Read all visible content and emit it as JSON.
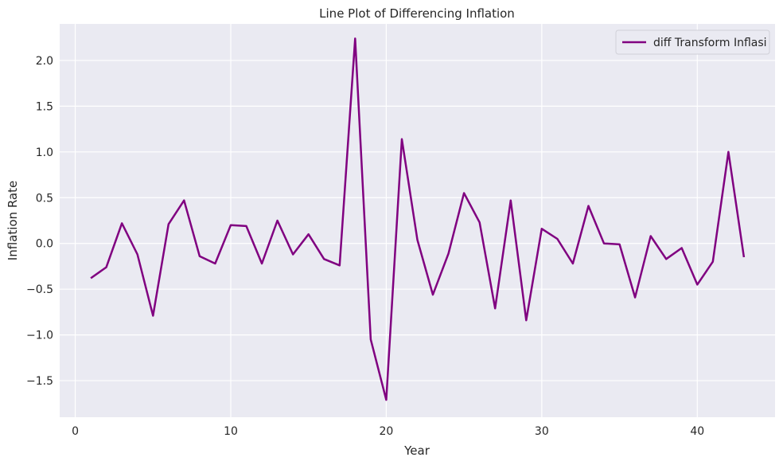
{
  "chart_data": {
    "type": "line",
    "title": "Line Plot of Differencing Inflation",
    "xlabel": "Year",
    "ylabel": "Inflation Rate",
    "xlim": [
      -1,
      45
    ],
    "ylim": [
      -1.9,
      2.4
    ],
    "xticks": [
      0,
      10,
      20,
      30,
      40
    ],
    "yticks": [
      -1.5,
      -1.0,
      -0.5,
      0.0,
      0.5,
      1.0,
      1.5,
      2.0
    ],
    "ytick_labels": [
      "−1.5",
      "−1.0",
      "−0.5",
      "0.0",
      "0.5",
      "1.0",
      "1.5",
      "2.0"
    ],
    "grid": true,
    "background": "#eaeaf2",
    "grid_color": "#ffffff",
    "legend_position": "top-right",
    "series": [
      {
        "name": "diff Transform Inflasi",
        "color": "#800080",
        "x": [
          1,
          2,
          3,
          4,
          5,
          6,
          7,
          8,
          9,
          10,
          11,
          12,
          13,
          14,
          15,
          16,
          17,
          18,
          19,
          20,
          21,
          22,
          23,
          24,
          25,
          26,
          27,
          28,
          29,
          30,
          31,
          32,
          33,
          34,
          35,
          36,
          37,
          38,
          39,
          40,
          41,
          42,
          43
        ],
        "y": [
          -0.38,
          -0.26,
          0.22,
          -0.12,
          -0.79,
          0.21,
          0.47,
          -0.14,
          -0.22,
          0.2,
          0.19,
          -0.22,
          0.25,
          -0.12,
          0.1,
          -0.17,
          -0.24,
          2.24,
          -1.05,
          -1.71,
          1.14,
          0.04,
          -0.56,
          -0.11,
          0.55,
          0.23,
          -0.71,
          0.47,
          -0.84,
          0.16,
          0.05,
          -0.22,
          0.41,
          0.0,
          -0.01,
          -0.59,
          0.08,
          -0.17,
          -0.05,
          -0.45,
          -0.2,
          1.0,
          -0.15
        ]
      }
    ]
  }
}
